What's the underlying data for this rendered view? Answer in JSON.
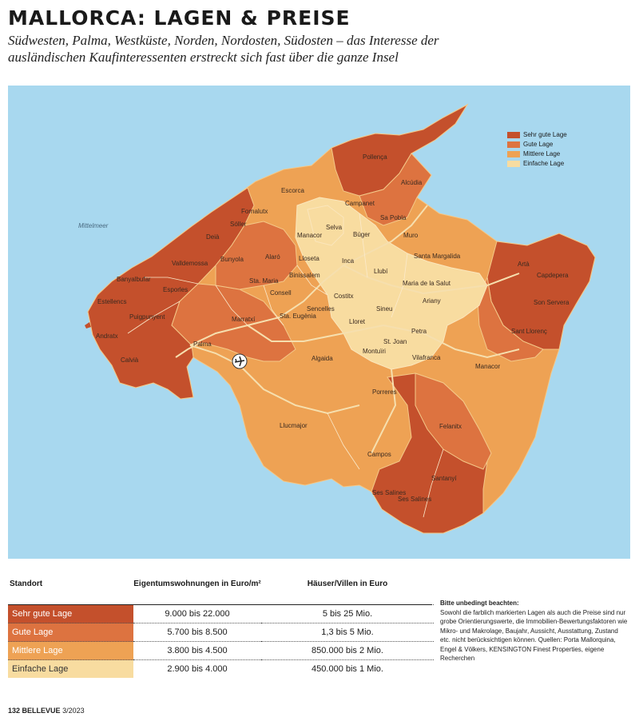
{
  "header": {
    "title": "MALLORCA: LAGEN & PREISE",
    "subtitle": "Südwesten, Palma, Westküste, Norden, Nordosten, Südosten – das Interesse der ausländischen Kaufinteressenten erstreckt sich fast über die ganze Insel"
  },
  "map": {
    "sea_label": "Mittelmeer",
    "colors": {
      "sehr_gut": "#c4502c",
      "gut": "#dd7340",
      "mittel": "#eea254",
      "einfach": "#f8dca0",
      "sea": "#a8d8ef",
      "roads": "#f6dfae"
    },
    "places": [
      "Pollença",
      "Alcúdia",
      "Escorca",
      "Fornalutx",
      "Sóller",
      "Deià",
      "Valldemossa",
      "Banyalbufar",
      "Estellencs",
      "Esporles",
      "Puigpunyent",
      "Andratx",
      "Calvià",
      "Palma",
      "Bunyola",
      "Alaró",
      "Sta. Maria",
      "Consell",
      "Marratxí",
      "Sta. Eugènia",
      "Campanet",
      "Sa Pobla",
      "Selva",
      "Búger",
      "Muro",
      "Manacor",
      "Lloseta",
      "Inca",
      "Binissalem",
      "Llubí",
      "Santa Margalida",
      "Maria de la Salut",
      "Sencelles",
      "Costitx",
      "Lloret",
      "Sineu",
      "Ariany",
      "Petra",
      "Montuïri",
      "St. Joan",
      "Vilafranca",
      "Algaida",
      "Porreres",
      "Llucmajor",
      "Felanitx",
      "Campos",
      "Santanyí",
      "Ses Salines",
      "Artà",
      "Capdepera",
      "Son Servera",
      "Sant Llorenç"
    ],
    "legend": [
      {
        "label": "Sehr gute Lage",
        "color": "#c4502c"
      },
      {
        "label": "Gute Lage",
        "color": "#dd7340"
      },
      {
        "label": "Mittlere Lage",
        "color": "#eea254"
      },
      {
        "label": "Einfache Lage",
        "color": "#f8dca0"
      }
    ]
  },
  "table": {
    "headers": [
      "Standort",
      "Eigentumswohnungen in Euro/m²",
      "Häuser/Villen in Euro"
    ],
    "rows": [
      {
        "label": "Sehr gute Lage",
        "apartments": "9.000 bis 22.000",
        "houses": "5 bis 25 Mio.",
        "color": "#c4502c"
      },
      {
        "label": "Gute Lage",
        "apartments": "5.700 bis 8.500",
        "houses": "1,3 bis 5 Mio.",
        "color": "#dd7340"
      },
      {
        "label": "Mittlere Lage",
        "apartments": "3.800 bis 4.500",
        "houses": "850.000 bis 2 Mio.",
        "color": "#eea254"
      },
      {
        "label": "Einfache Lage",
        "apartments": "2.900 bis 4.000",
        "houses": "450.000 bis 1 Mio.",
        "color": "#f8dca0"
      }
    ]
  },
  "note": {
    "title": "Bitte unbedingt beachten:",
    "text": "Sowohl die farblich markierten Lagen als auch die Preise sind nur grobe Orientierungswerte, die Immobilien-Bewertungsfaktoren wie Mikro- und Makrolage, Baujahr, Aussicht, Ausstattung, Zustand etc. nicht berücksichtigen können. Quellen: Porta Mallorquina, Engel & Völkers, KENSINGTON Finest Properties, eigene Recherchen"
  },
  "footer": {
    "page": "132",
    "magazine": "BELLEVUE",
    "issue": "3/2023"
  }
}
